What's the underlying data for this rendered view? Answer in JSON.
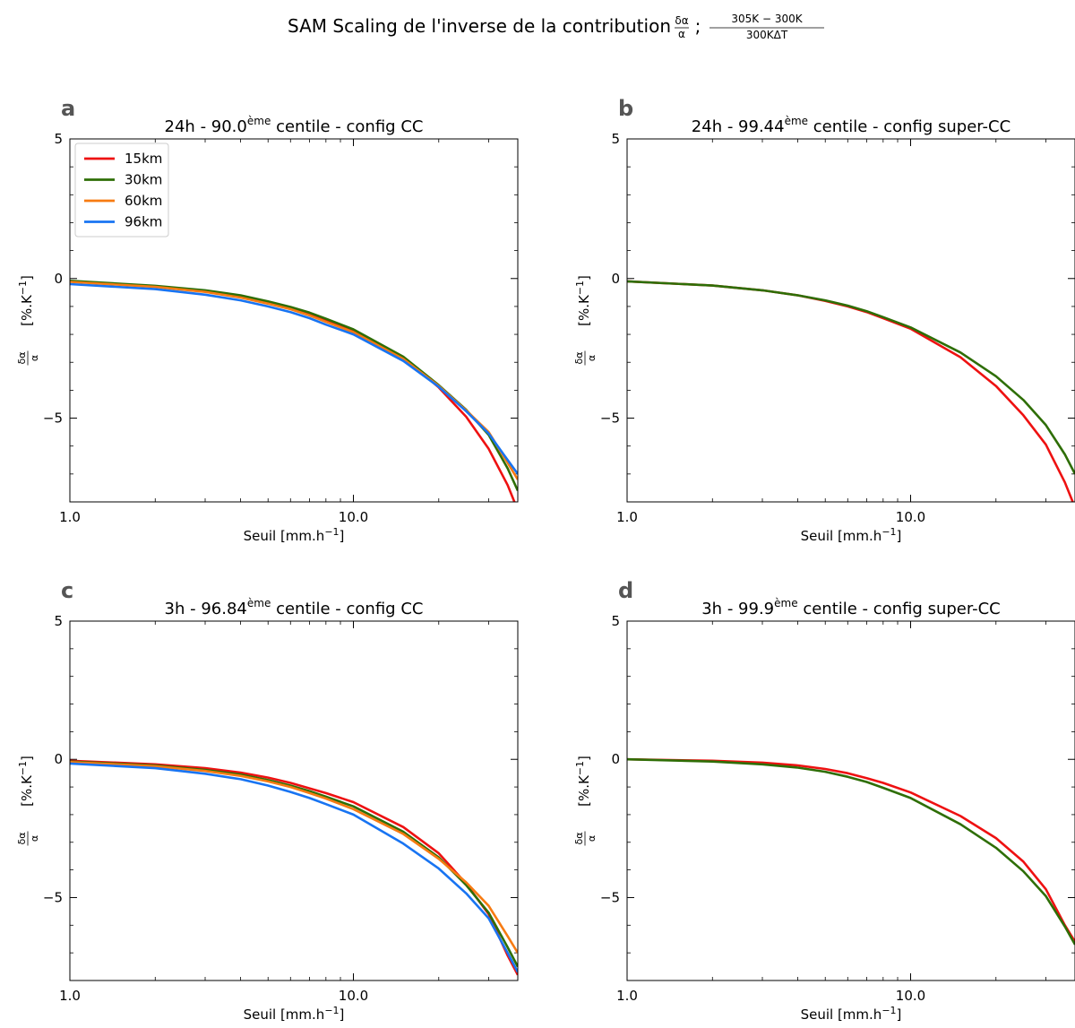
{
  "figure": {
    "suptitle_main": "SAM Scaling de l'inverse de la contribution",
    "suptitle_frac1_num": "δα",
    "suptitle_frac1_den": "α",
    "suptitle_sep": ";",
    "suptitle_frac2_num": "305K − 300K",
    "suptitle_frac2_den": "300KΔT"
  },
  "chart_data": [
    {
      "panel": "a",
      "type": "line",
      "title_pre": "24h - 90.0",
      "title_sup": "ème",
      "title_post": " centile - config CC",
      "xlabel": "Seuil [mm.h",
      "xlabel_sup": "−1",
      "xlabel_end": "]",
      "ylabel": "[%.K",
      "ylabel_sup": "−1",
      "ylabel_end": "]",
      "ylabel_frac_num": "δα",
      "ylabel_frac_den": "α",
      "xscale": "log",
      "xlim": [
        1.0,
        38.0
      ],
      "ylim": [
        -8.0,
        5.0
      ],
      "xticks": [
        {
          "v": 1.0,
          "label": "1.0"
        },
        {
          "v": 10.0,
          "label": "10.0"
        }
      ],
      "yticks": [
        {
          "v": 5,
          "label": "5"
        },
        {
          "v": 0,
          "label": "0"
        },
        {
          "v": -5,
          "label": "−5"
        }
      ],
      "legend": "upper-left",
      "series": [
        {
          "name": "15km",
          "color": "#ee1111",
          "x": [
            1,
            2,
            3,
            4,
            5,
            6,
            7,
            8,
            10,
            15,
            20,
            25,
            30,
            35,
            38
          ],
          "y": [
            -0.1,
            -0.28,
            -0.45,
            -0.63,
            -0.85,
            -1.05,
            -1.25,
            -1.47,
            -1.85,
            -2.82,
            -3.9,
            -4.95,
            -6.1,
            -7.4,
            -8.3
          ]
        },
        {
          "name": "30km",
          "color": "#2e6e06",
          "x": [
            1,
            2,
            3,
            4,
            5,
            6,
            7,
            8,
            10,
            15,
            20,
            25,
            30,
            35,
            38
          ],
          "y": [
            -0.08,
            -0.26,
            -0.42,
            -0.6,
            -0.82,
            -1.02,
            -1.22,
            -1.44,
            -1.82,
            -2.8,
            -3.82,
            -4.7,
            -5.6,
            -6.8,
            -7.6
          ]
        },
        {
          "name": "60km",
          "color": "#f77b12",
          "x": [
            1,
            2,
            3,
            4,
            5,
            6,
            7,
            8,
            10,
            15,
            20,
            25,
            30,
            35,
            38
          ],
          "y": [
            -0.12,
            -0.3,
            -0.48,
            -0.68,
            -0.9,
            -1.1,
            -1.32,
            -1.55,
            -1.92,
            -2.88,
            -3.85,
            -4.72,
            -5.5,
            -6.6,
            -7.2
          ]
        },
        {
          "name": "96km",
          "color": "#1874f2",
          "x": [
            1,
            2,
            3,
            4,
            5,
            6,
            7,
            8,
            10,
            15,
            20,
            25,
            30,
            35,
            38
          ],
          "y": [
            -0.2,
            -0.38,
            -0.58,
            -0.78,
            -1.0,
            -1.2,
            -1.42,
            -1.65,
            -2.0,
            -2.95,
            -3.88,
            -4.75,
            -5.55,
            -6.5,
            -7.0
          ]
        }
      ]
    },
    {
      "panel": "b",
      "type": "line",
      "title_pre": "24h - 99.44",
      "title_sup": "ème",
      "title_post": " centile - config super-CC",
      "xlabel": "Seuil [mm.h",
      "xlabel_sup": "−1",
      "xlabel_end": "]",
      "ylabel": "[%.K",
      "ylabel_sup": "−1",
      "ylabel_end": "]",
      "ylabel_frac_num": "δα",
      "ylabel_frac_den": "α",
      "xscale": "log",
      "xlim": [
        1.0,
        38.0
      ],
      "ylim": [
        -8.0,
        5.0
      ],
      "xticks": [
        {
          "v": 1.0,
          "label": "1.0"
        },
        {
          "v": 10.0,
          "label": "10.0"
        }
      ],
      "yticks": [
        {
          "v": 5,
          "label": "5"
        },
        {
          "v": 0,
          "label": "0"
        },
        {
          "v": -5,
          "label": "−5"
        }
      ],
      "series": [
        {
          "name": "15km",
          "color": "#ee1111",
          "x": [
            1,
            2,
            3,
            4,
            5,
            6,
            7,
            8,
            10,
            15,
            20,
            25,
            30,
            35,
            38
          ],
          "y": [
            -0.1,
            -0.25,
            -0.42,
            -0.6,
            -0.8,
            -1.0,
            -1.2,
            -1.42,
            -1.8,
            -2.82,
            -3.85,
            -4.9,
            -5.95,
            -7.3,
            -8.2
          ]
        },
        {
          "name": "30km",
          "color": "#2e6e06",
          "x": [
            1,
            2,
            3,
            4,
            5,
            6,
            7,
            8,
            10,
            15,
            20,
            25,
            30,
            35,
            38
          ],
          "y": [
            -0.1,
            -0.25,
            -0.42,
            -0.6,
            -0.78,
            -0.97,
            -1.17,
            -1.38,
            -1.75,
            -2.65,
            -3.5,
            -4.35,
            -5.25,
            -6.3,
            -7.0
          ]
        }
      ]
    },
    {
      "panel": "c",
      "type": "line",
      "title_pre": "3h - 96.84",
      "title_sup": "ème",
      "title_post": " centile - config CC",
      "xlabel": "Seuil [mm.h",
      "xlabel_sup": "−1",
      "xlabel_end": "]",
      "ylabel": "[%.K",
      "ylabel_sup": "−1",
      "ylabel_end": "]",
      "ylabel_frac_num": "δα",
      "ylabel_frac_den": "α",
      "xscale": "log",
      "xlim": [
        1.0,
        38.0
      ],
      "ylim": [
        -8.0,
        5.0
      ],
      "xticks": [
        {
          "v": 1.0,
          "label": "1.0"
        },
        {
          "v": 10.0,
          "label": "10.0"
        }
      ],
      "yticks": [
        {
          "v": 5,
          "label": "5"
        },
        {
          "v": 0,
          "label": "0"
        },
        {
          "v": -5,
          "label": "−5"
        }
      ],
      "series": [
        {
          "name": "15km",
          "color": "#ee1111",
          "x": [
            1,
            2,
            3,
            4,
            5,
            6,
            7,
            8,
            10,
            15,
            20,
            25,
            30,
            35,
            38
          ],
          "y": [
            -0.05,
            -0.18,
            -0.32,
            -0.48,
            -0.66,
            -0.85,
            -1.05,
            -1.22,
            -1.55,
            -2.45,
            -3.4,
            -4.5,
            -5.6,
            -7.1,
            -7.8
          ]
        },
        {
          "name": "30km",
          "color": "#2e6e06",
          "x": [
            1,
            2,
            3,
            4,
            5,
            6,
            7,
            8,
            10,
            15,
            20,
            25,
            30,
            35,
            38
          ],
          "y": [
            -0.08,
            -0.22,
            -0.38,
            -0.55,
            -0.75,
            -0.95,
            -1.15,
            -1.35,
            -1.7,
            -2.62,
            -3.55,
            -4.55,
            -5.55,
            -6.8,
            -7.5
          ]
        },
        {
          "name": "60km",
          "color": "#f77b12",
          "x": [
            1,
            2,
            3,
            4,
            5,
            6,
            7,
            8,
            10,
            15,
            20,
            25,
            30,
            35,
            38
          ],
          "y": [
            -0.1,
            -0.25,
            -0.42,
            -0.6,
            -0.8,
            -1.0,
            -1.22,
            -1.42,
            -1.8,
            -2.7,
            -3.6,
            -4.45,
            -5.3,
            -6.4,
            -7.0
          ]
        },
        {
          "name": "96km",
          "color": "#1874f2",
          "x": [
            1,
            2,
            3,
            4,
            5,
            6,
            7,
            8,
            10,
            15,
            20,
            25,
            30,
            35,
            38
          ],
          "y": [
            -0.15,
            -0.32,
            -0.52,
            -0.72,
            -0.95,
            -1.18,
            -1.4,
            -1.62,
            -2.0,
            -3.05,
            -3.95,
            -4.85,
            -5.75,
            -7.0,
            -7.7
          ]
        }
      ]
    },
    {
      "panel": "d",
      "type": "line",
      "title_pre": "3h - 99.9",
      "title_sup": "ème",
      "title_post": " centile - config super-CC",
      "xlabel": "Seuil [mm.h",
      "xlabel_sup": "−1",
      "xlabel_end": "]",
      "ylabel": "[%.K",
      "ylabel_sup": "−1",
      "ylabel_end": "]",
      "ylabel_frac_num": "δα",
      "ylabel_frac_den": "α",
      "xscale": "log",
      "xlim": [
        1.0,
        38.0
      ],
      "ylim": [
        -8.0,
        5.0
      ],
      "xticks": [
        {
          "v": 1.0,
          "label": "1.0"
        },
        {
          "v": 10.0,
          "label": "10.0"
        }
      ],
      "yticks": [
        {
          "v": 5,
          "label": "5"
        },
        {
          "v": 0,
          "label": "0"
        },
        {
          "v": -5,
          "label": "−5"
        }
      ],
      "series": [
        {
          "name": "15km",
          "color": "#ee1111",
          "x": [
            1,
            2,
            3,
            4,
            5,
            6,
            7,
            8,
            10,
            15,
            20,
            25,
            30,
            35,
            38
          ],
          "y": [
            0.0,
            -0.05,
            -0.12,
            -0.22,
            -0.35,
            -0.5,
            -0.68,
            -0.85,
            -1.2,
            -2.05,
            -2.85,
            -3.7,
            -4.7,
            -6.0,
            -6.6
          ]
        },
        {
          "name": "30km",
          "color": "#2e6e06",
          "x": [
            1,
            2,
            3,
            4,
            5,
            6,
            7,
            8,
            10,
            15,
            20,
            25,
            30,
            35,
            38
          ],
          "y": [
            0.0,
            -0.08,
            -0.18,
            -0.3,
            -0.45,
            -0.63,
            -0.82,
            -1.03,
            -1.4,
            -2.35,
            -3.2,
            -4.05,
            -4.95,
            -6.05,
            -6.7
          ]
        }
      ]
    }
  ]
}
